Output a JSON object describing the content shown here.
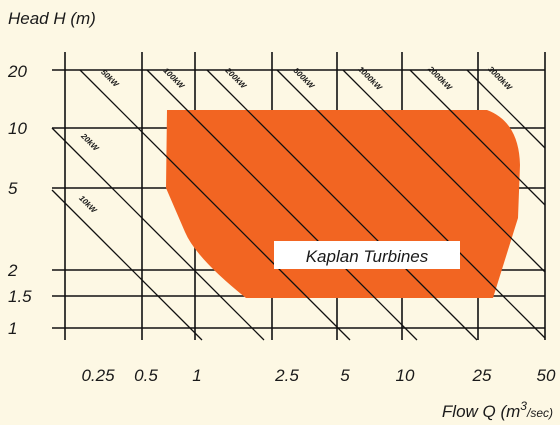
{
  "chart_data": {
    "type": "area",
    "title": "",
    "ylabel": "Head H (m)",
    "xlabel_main": "Flow Q (m",
    "xlabel_sup": "3",
    "xlabel_sub": "/sec)",
    "x_scale": "log",
    "y_scale": "log",
    "x_ticks": [
      {
        "value": 0.25,
        "label": "0.25"
      },
      {
        "value": 0.5,
        "label": "0.5"
      },
      {
        "value": 1,
        "label": "1"
      },
      {
        "value": 2.5,
        "label": "2.5"
      },
      {
        "value": 5,
        "label": "5"
      },
      {
        "value": 10,
        "label": "10"
      },
      {
        "value": 25,
        "label": "25"
      },
      {
        "value": 50,
        "label": "50"
      }
    ],
    "y_ticks": [
      {
        "value": 1,
        "label": "1"
      },
      {
        "value": 1.5,
        "label": "1.5"
      },
      {
        "value": 2,
        "label": "2"
      },
      {
        "value": 5,
        "label": "5"
      },
      {
        "value": 10,
        "label": "10"
      },
      {
        "value": 20,
        "label": "20"
      }
    ],
    "power_lines": [
      {
        "label": "10kW"
      },
      {
        "label": "20kW"
      },
      {
        "label": "50kW"
      },
      {
        "label": "100kW"
      },
      {
        "label": "200kW"
      },
      {
        "label": "500kW"
      },
      {
        "label": "1000kW"
      },
      {
        "label": "2000kW"
      },
      {
        "label": "3000kW"
      }
    ],
    "region": {
      "name": "Kaplan Turbines",
      "color": "#f26522",
      "q_min": 0.65,
      "q_max": 35,
      "h_min": 1.5,
      "h_max": 12
    },
    "grid": true,
    "colors": {
      "background": "#fdf8e4",
      "region": "#f26522",
      "lines": "#111111"
    }
  }
}
